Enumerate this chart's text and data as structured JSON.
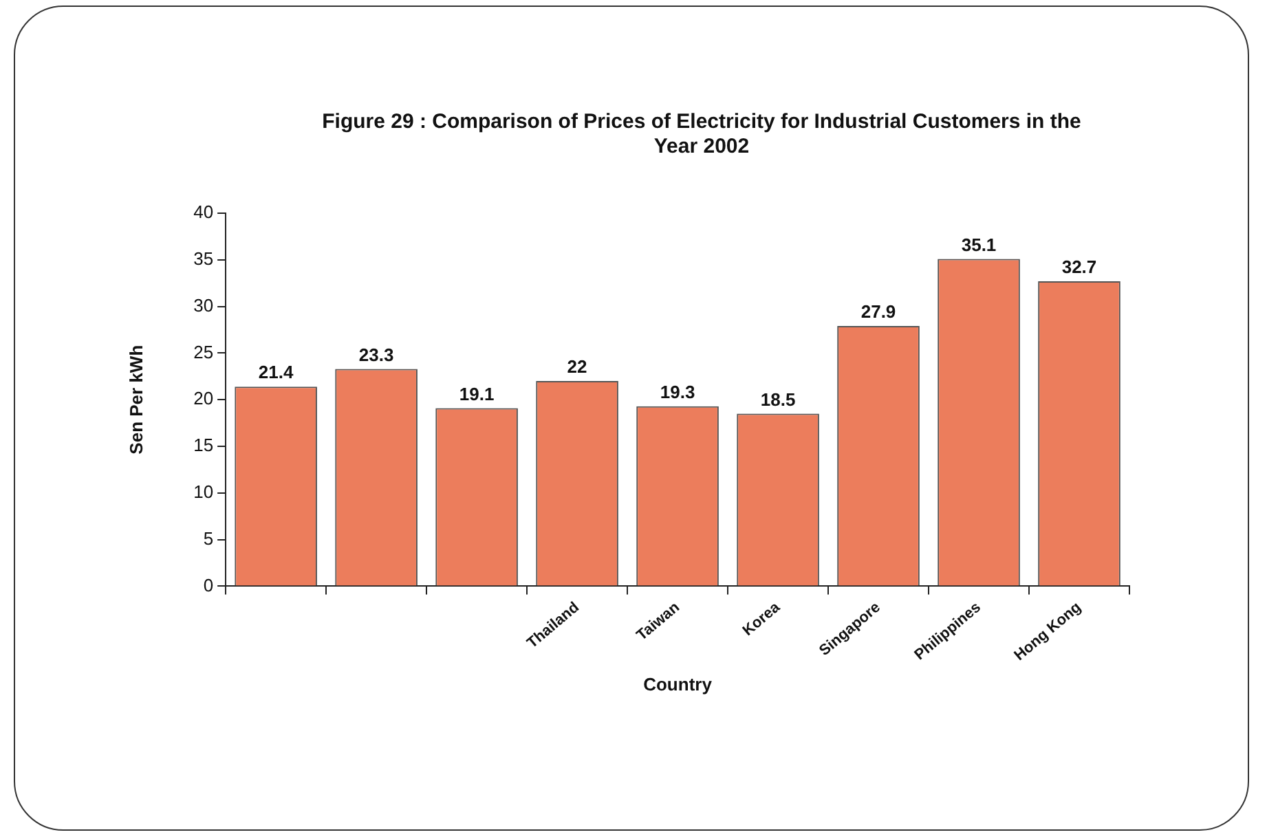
{
  "chart_data": {
    "type": "bar",
    "title": "Figure 29 : Comparison of Prices of Electricity for Industrial Customers in the Year 2002",
    "xlabel": "Country",
    "ylabel": "Sen Per kWh",
    "categories": [
      null,
      null,
      null,
      "Thailand",
      "Taiwan",
      "Korea",
      "Singapore",
      "Philippines",
      "Hong Kong"
    ],
    "values": [
      21.4,
      23.3,
      19.1,
      22,
      19.3,
      18.5,
      27.9,
      35.1,
      32.7
    ],
    "color": "#ec7d5c",
    "ylim": [
      0,
      40
    ],
    "yticks": [
      0,
      5,
      10,
      15,
      20,
      25,
      30,
      35,
      40
    ],
    "data_labels": true
  }
}
